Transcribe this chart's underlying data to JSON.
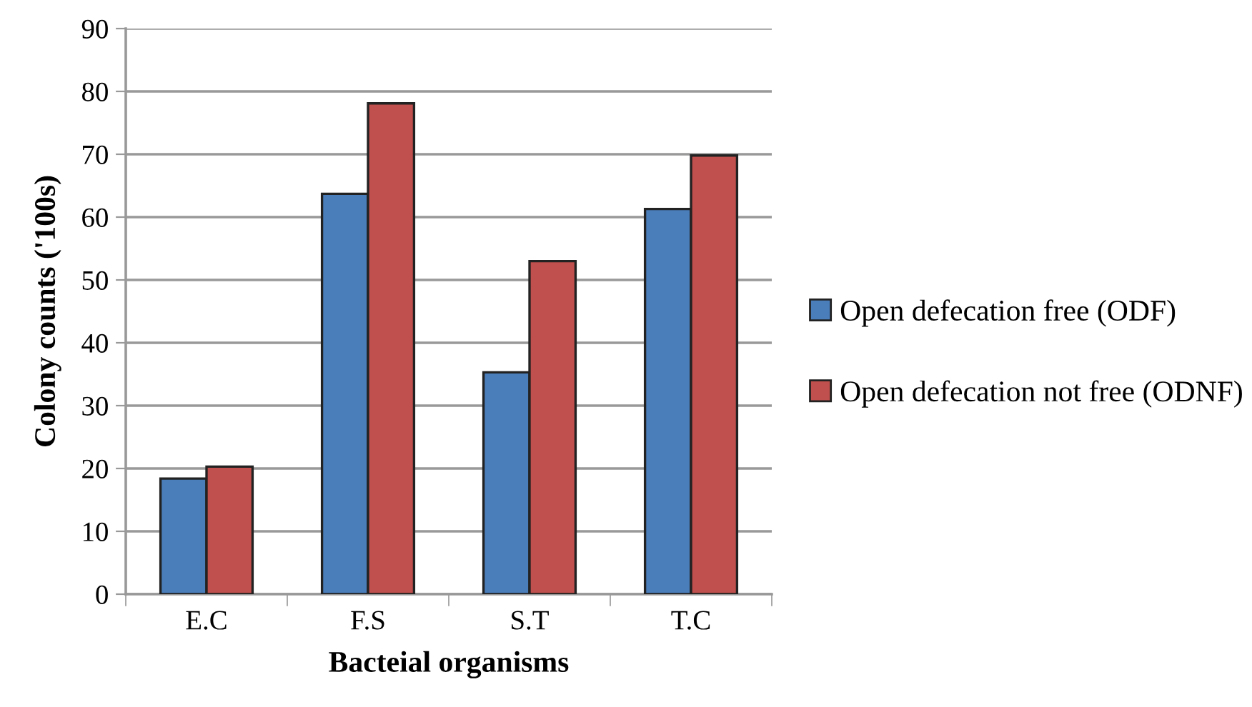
{
  "chart_data": {
    "type": "bar",
    "xlabel": "Bacteial organisms",
    "ylabel": "Colony counts ('100s)",
    "categories": [
      "E.C",
      "F.S",
      "S.T",
      "T.C"
    ],
    "series": [
      {
        "name": "Open defecation free (ODF)",
        "color": "#4a7ebb",
        "values": [
          18.4,
          63.7,
          35.3,
          61.3
        ]
      },
      {
        "name": "Open defecation not free (ODNF)",
        "color": "#c0504d",
        "values": [
          20.3,
          78.1,
          53.0,
          69.8
        ]
      }
    ],
    "ylim": [
      0,
      90
    ],
    "yticks": [
      0,
      10,
      20,
      30,
      40,
      50,
      60,
      70,
      80,
      90
    ],
    "grid": "y",
    "legend": "right"
  }
}
